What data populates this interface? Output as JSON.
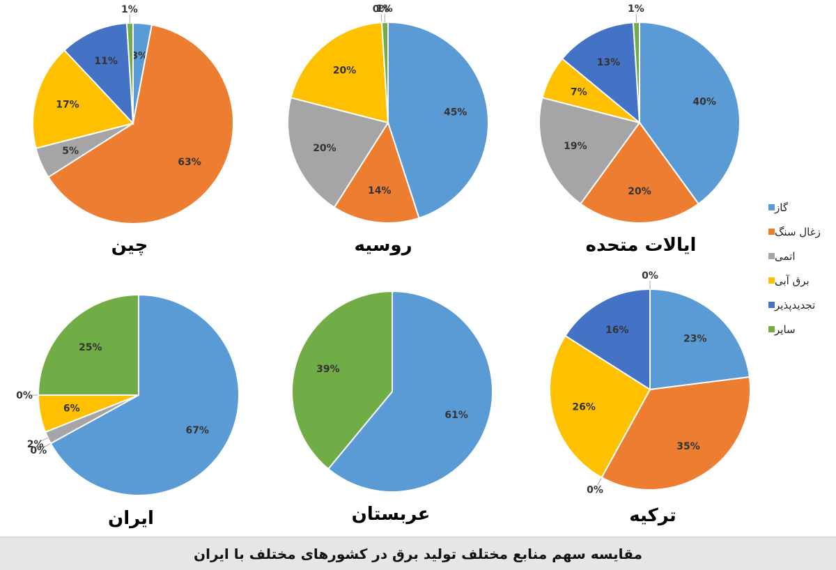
{
  "caption": "مقایسه سهم منابع مختلف تولید برق در کشورهای مختلف با ایران",
  "legend": [
    {
      "label": "گاز",
      "color": "#5B9BD5"
    },
    {
      "label": "زغال سنگ",
      "color": "#ED7D31"
    },
    {
      "label": "اتمی",
      "color": "#A5A5A5"
    },
    {
      "label": "برق آبی",
      "color": "#FFC000"
    },
    {
      "label": "تجدیدپذیر",
      "color": "#4472C4"
    },
    {
      "label": "سایر",
      "color": "#70AD47"
    }
  ],
  "chart_data": [
    {
      "type": "pie",
      "title": "چین",
      "categories": [
        "گاز",
        "زغال سنگ",
        "اتمی",
        "برق آبی",
        "تجدیدپذیر",
        "سایر"
      ],
      "values": [
        3,
        63,
        5,
        17,
        11,
        1
      ],
      "labels": [
        "3%",
        "63%",
        "5%",
        "17%",
        "11%",
        "1%"
      ]
    },
    {
      "type": "pie",
      "title": "روسیه",
      "categories": [
        "گاز",
        "زغال سنگ",
        "اتمی",
        "برق آبی",
        "تجدیدپذیر",
        "سایر"
      ],
      "values": [
        45,
        14,
        20,
        20,
        0,
        1
      ],
      "labels": [
        "45%",
        "14%",
        "20%",
        "20%",
        "0%",
        "1%"
      ]
    },
    {
      "type": "pie",
      "title": "ایالات متحده",
      "categories": [
        "گاز",
        "زغال سنگ",
        "اتمی",
        "برق آبی",
        "تجدیدپذیر",
        "سایر"
      ],
      "values": [
        40,
        20,
        19,
        7,
        13,
        1
      ],
      "labels": [
        "40%",
        "20%",
        "19%",
        "7%",
        "13%",
        "1%"
      ]
    },
    {
      "type": "pie",
      "title": "ایران",
      "categories": [
        "گاز",
        "زغال سنگ",
        "اتمی",
        "برق آبی",
        "تجدیدپذیر",
        "سایر"
      ],
      "values": [
        67,
        0,
        2,
        6,
        0,
        25
      ],
      "labels": [
        "67%",
        "0%",
        "2%",
        "6%",
        "0%",
        "25%"
      ]
    },
    {
      "type": "pie",
      "title": "عربستان",
      "categories": [
        "گاز",
        "سایر"
      ],
      "values": [
        61,
        39
      ],
      "labels": [
        "61%",
        "39%"
      ]
    },
    {
      "type": "pie",
      "title": "ترکیه",
      "categories": [
        "گاز",
        "زغال سنگ",
        "اتمی",
        "برق آبی",
        "تجدیدپذیر",
        "سایر"
      ],
      "values": [
        23,
        35,
        0,
        26,
        16,
        0
      ],
      "labels": [
        "23%",
        "35%",
        "0%",
        "26%",
        "16%",
        "0%"
      ]
    }
  ]
}
